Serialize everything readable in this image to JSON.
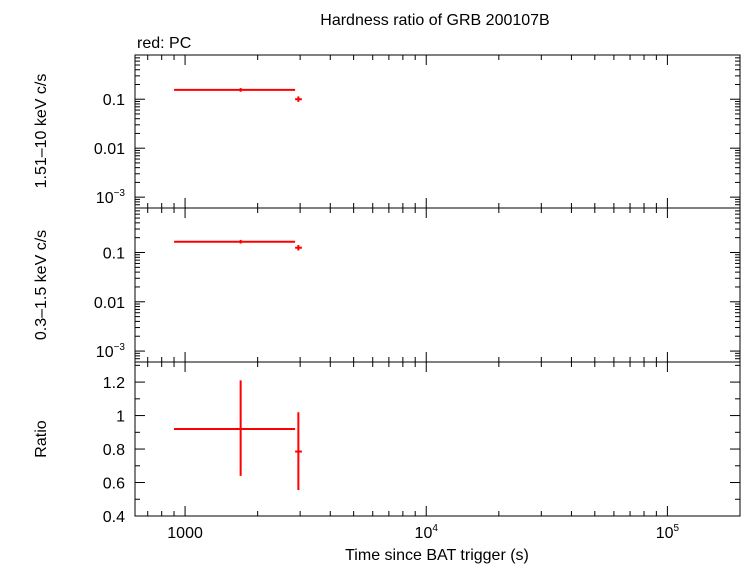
{
  "chart_data": {
    "type": "scatter",
    "title": "Hardness ratio of GRB 200107B",
    "legend": "red: PC",
    "xlabel": "Time since BAT trigger (s)",
    "xscale": "log",
    "xlim": [
      620,
      200000
    ],
    "x_ticks": [
      {
        "value": 1000,
        "label": "1000",
        "sup": ""
      },
      {
        "value": 10000,
        "label": "10",
        "sup": "4"
      },
      {
        "value": 100000,
        "label": "10",
        "sup": "5"
      }
    ],
    "series_color": "#ff0000",
    "panels": [
      {
        "name": "hard-band",
        "ylabel": "1.51–10 keV c/s",
        "yscale": "log",
        "ylim": [
          0.0006,
          0.8
        ],
        "y_ticks": [
          {
            "value": 0.1,
            "label": "0.1",
            "sup": ""
          },
          {
            "value": 0.01,
            "label": "0.01",
            "sup": ""
          },
          {
            "value": 0.001,
            "label": "10",
            "sup": "−3"
          }
        ],
        "points": [
          {
            "x": 1700,
            "xlo": 900,
            "xhi": 2860,
            "y": 0.155,
            "ylo": 0.142,
            "yhi": 0.169
          },
          {
            "x": 2950,
            "xlo": 2860,
            "xhi": 3050,
            "y": 0.1,
            "ylo": 0.088,
            "yhi": 0.114
          }
        ]
      },
      {
        "name": "soft-band",
        "ylabel": "0.3–1.5 keV c/s",
        "yscale": "log",
        "ylim": [
          0.0006,
          0.8
        ],
        "y_ticks": [
          {
            "value": 0.1,
            "label": "0.1",
            "sup": ""
          },
          {
            "value": 0.01,
            "label": "0.01",
            "sup": ""
          },
          {
            "value": 0.001,
            "label": "10",
            "sup": "−3"
          }
        ],
        "points": [
          {
            "x": 1700,
            "xlo": 900,
            "xhi": 2860,
            "y": 0.165,
            "ylo": 0.152,
            "yhi": 0.18
          },
          {
            "x": 2950,
            "xlo": 2860,
            "xhi": 3050,
            "y": 0.125,
            "ylo": 0.11,
            "yhi": 0.142
          }
        ]
      },
      {
        "name": "ratio",
        "ylabel": "Ratio",
        "yscale": "linear",
        "ylim": [
          0.4,
          1.32
        ],
        "y_ticks": [
          {
            "value": 1.2,
            "label": "1.2",
            "sup": ""
          },
          {
            "value": 1.0,
            "label": "1",
            "sup": ""
          },
          {
            "value": 0.8,
            "label": "0.8",
            "sup": ""
          },
          {
            "value": 0.6,
            "label": "0.6",
            "sup": ""
          },
          {
            "value": 0.4,
            "label": "0.4",
            "sup": ""
          }
        ],
        "points": [
          {
            "x": 1700,
            "xlo": 900,
            "xhi": 2860,
            "y": 0.92,
            "ylo": 0.64,
            "yhi": 1.21
          },
          {
            "x": 2950,
            "xlo": 2860,
            "xhi": 3050,
            "y": 0.785,
            "ylo": 0.555,
            "yhi": 1.02
          }
        ]
      }
    ]
  }
}
